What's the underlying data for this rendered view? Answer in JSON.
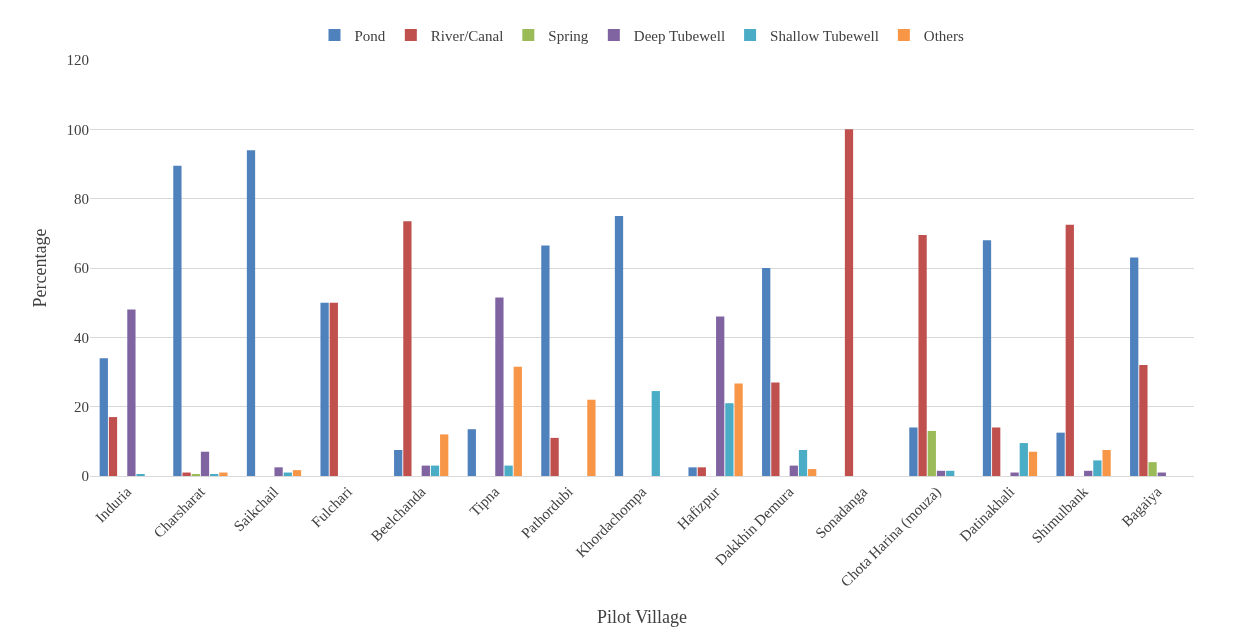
{
  "chart_data": {
    "type": "bar",
    "xlabel": "Pilot Village",
    "ylabel": "Percentage",
    "categories": [
      "Induria",
      "Charsharat",
      "Saikchail",
      "Fulchari",
      "Beelchanda",
      "Tipna",
      "Pathordubi",
      "Khordachompa",
      "Hafizpur",
      "Dakkhin Demura",
      "Sonadanga",
      "Chota Harina (mouza)",
      "Datinakhali",
      "Shimulbank",
      "Bagaiya"
    ],
    "series": [
      {
        "name": "Pond",
        "color": "#4f81bd",
        "values": [
          34,
          89.5,
          94,
          50,
          7.5,
          13.5,
          66.5,
          75,
          2.5,
          60,
          0,
          14,
          68,
          12.5,
          63
        ]
      },
      {
        "name": "River/Canal",
        "color": "#c0504d",
        "values": [
          17,
          1,
          0,
          50,
          73.5,
          0,
          11,
          0,
          2.5,
          27,
          100,
          69.5,
          14,
          72.5,
          32
        ]
      },
      {
        "name": "Spring",
        "color": "#9bbb59",
        "values": [
          0,
          0.5,
          0,
          0,
          0,
          0,
          0,
          0,
          0,
          0,
          0,
          13,
          0,
          0,
          4
        ]
      },
      {
        "name": "Deep Tubewell",
        "color": "#8064a2",
        "values": [
          48,
          7,
          2.5,
          0,
          3,
          51.5,
          0,
          0,
          46,
          3,
          0,
          1.5,
          1,
          1.5,
          1
        ]
      },
      {
        "name": "Shallow Tubewell",
        "color": "#4bacc6",
        "values": [
          0.5,
          0.5,
          1,
          0,
          3,
          3,
          0,
          24.5,
          21,
          7.5,
          0,
          1.5,
          9.5,
          4.5,
          0
        ]
      },
      {
        "name": "Others",
        "color": "#f79646",
        "values": [
          0,
          1,
          1.7,
          0,
          12,
          31.5,
          22,
          0,
          26.7,
          2,
          0,
          0,
          7,
          7.5,
          0
        ]
      }
    ],
    "ylim": [
      0,
      120
    ],
    "yticks": [
      0,
      20,
      40,
      60,
      80,
      100,
      120
    ],
    "grid": "y",
    "legend": "top"
  }
}
